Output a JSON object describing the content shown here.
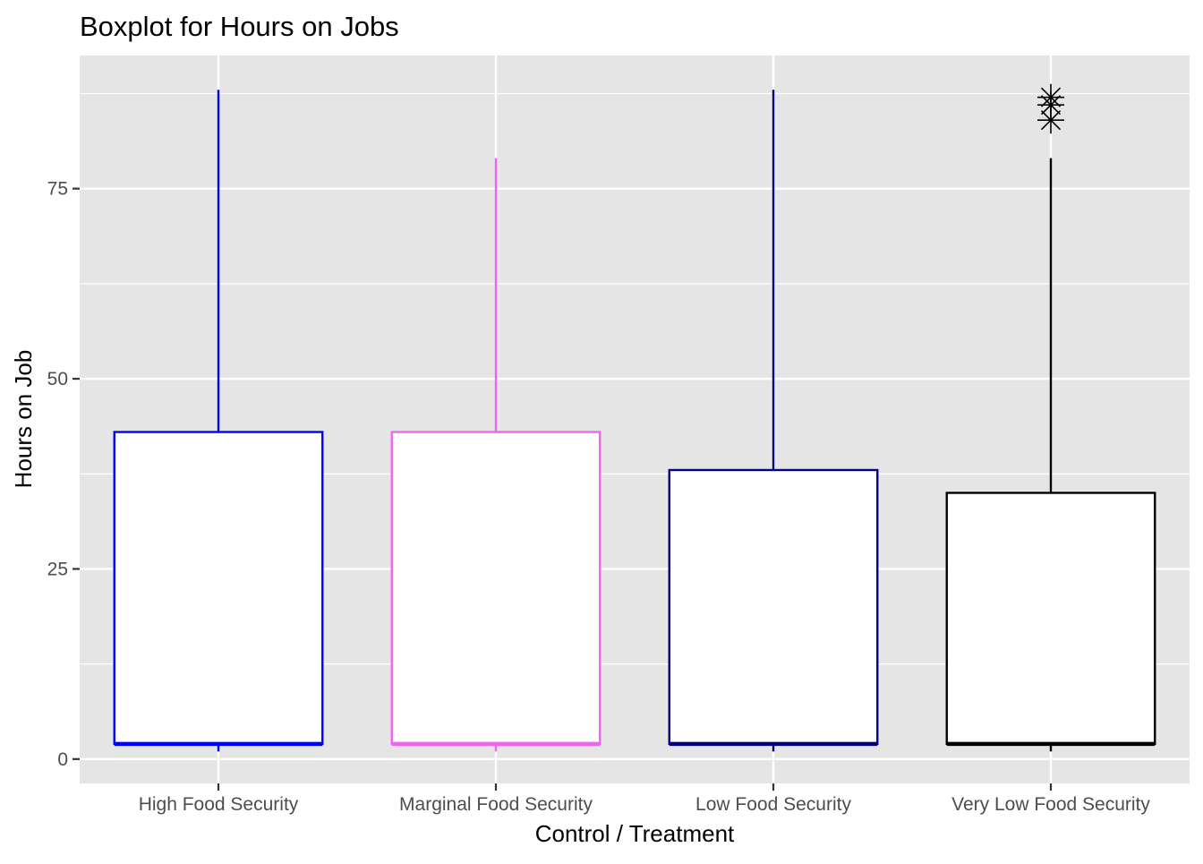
{
  "chart_data": {
    "type": "boxplot",
    "title": "Boxplot for Hours on Jobs",
    "xlabel": "Control / Treatment",
    "ylabel": "Hours on Job",
    "ylim": [
      -3.2,
      92.5
    ],
    "yticks": [
      0,
      25,
      50,
      75
    ],
    "grid": true,
    "legend": "none",
    "categories": [
      "High Food Security",
      "Marginal Food Security",
      "Low Food Security",
      "Very Low Food Security"
    ],
    "boxes": [
      {
        "category": "High Food Security",
        "color": "#0000FF",
        "whisker_low": 1,
        "q1": 2,
        "median": 2,
        "q3": 43,
        "whisker_high": 88,
        "outliers": []
      },
      {
        "category": "Marginal Food Security",
        "color": "#EE66EE",
        "whisker_low": 1,
        "q1": 2,
        "median": 2,
        "q3": 43,
        "whisker_high": 79,
        "outliers": []
      },
      {
        "category": "Low Food Security",
        "color": "#000080",
        "whisker_low": 1,
        "q1": 2,
        "median": 2,
        "q3": 38,
        "whisker_high": 88,
        "outliers": []
      },
      {
        "category": "Very Low Food Security",
        "color": "#000000",
        "whisker_low": 1,
        "q1": 2,
        "median": 2,
        "q3": 35,
        "whisker_high": 79,
        "outliers": [
          84,
          86,
          87
        ]
      }
    ],
    "colors": {
      "panel_bg": "#E5E5E5",
      "grid": "#FFFFFF",
      "tick_text": "#4D4D4D",
      "text": "#000000"
    }
  }
}
